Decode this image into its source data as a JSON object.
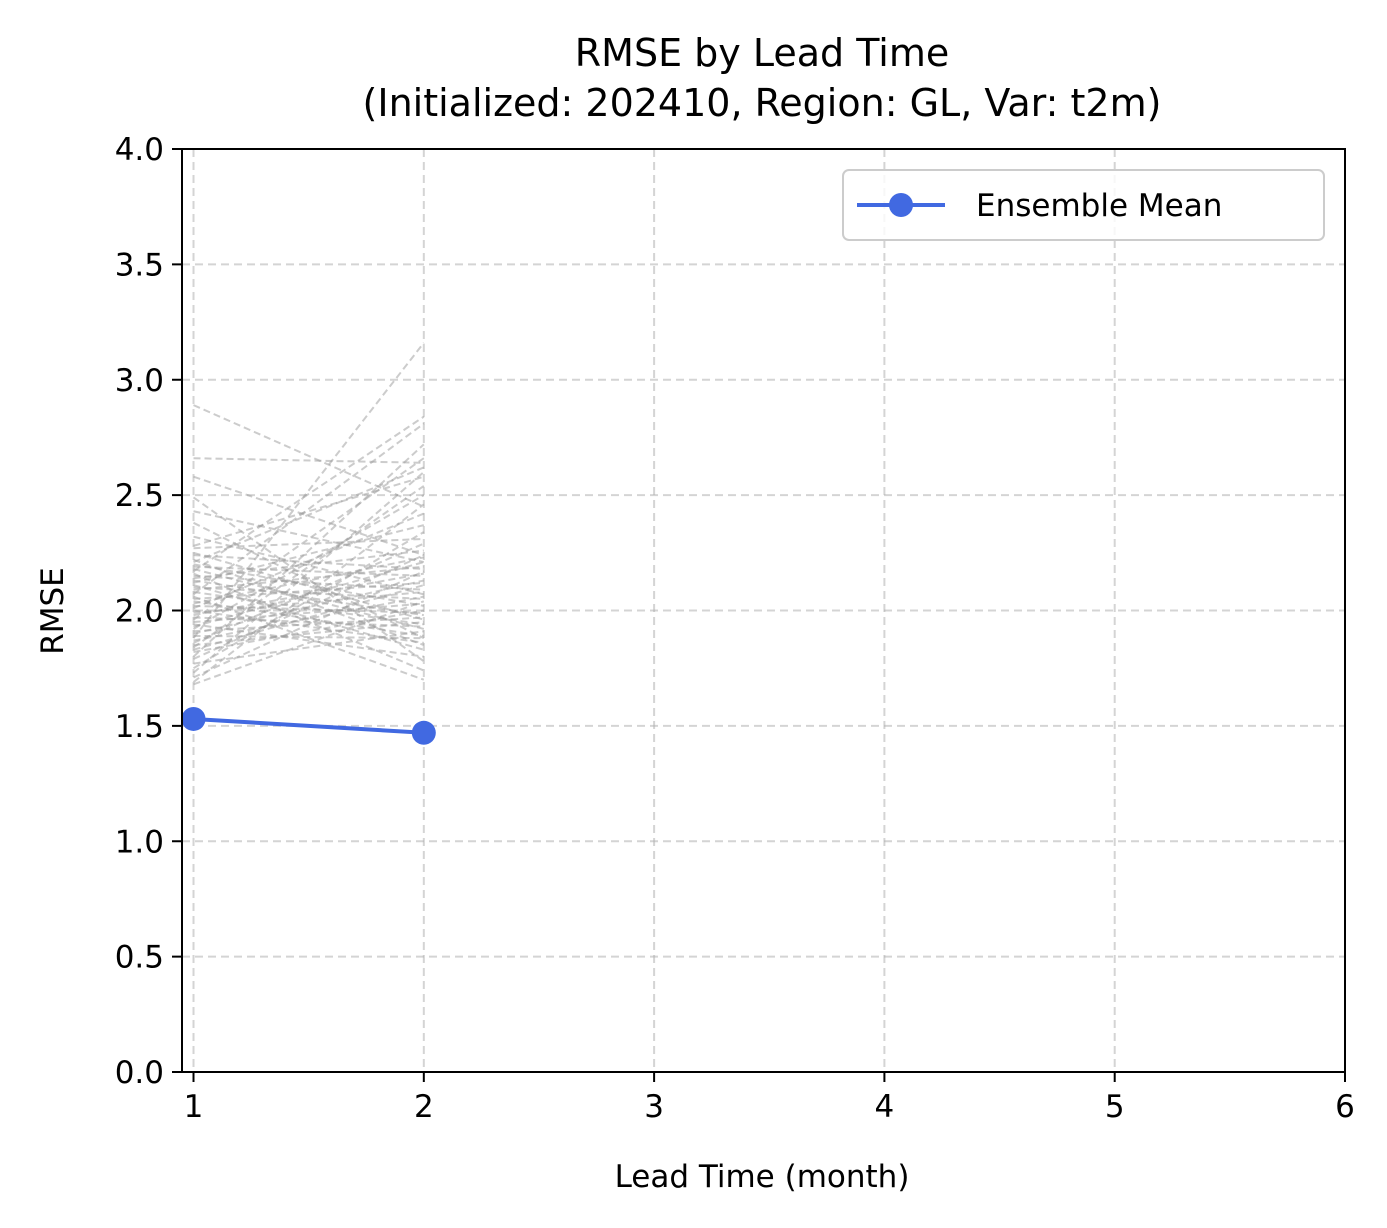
{
  "chart_data": {
    "type": "line",
    "title_line1": "RMSE by Lead Time",
    "title_line2": "(Initialized: 202410, Region: GL, Var: t2m)",
    "xlabel": "Lead Time (month)",
    "ylabel": "RMSE",
    "xlim": [
      0.95,
      6
    ],
    "ylim": [
      0,
      4
    ],
    "xticks": [
      1,
      2,
      3,
      4,
      5,
      6
    ],
    "xtick_labels": [
      "1",
      "2",
      "3",
      "4",
      "5",
      "6"
    ],
    "yticks": [
      0,
      0.5,
      1,
      1.5,
      2,
      2.5,
      3,
      3.5,
      4
    ],
    "ytick_labels": [
      "0.0",
      "0.5",
      "1.0",
      "1.5",
      "2.0",
      "2.5",
      "3.0",
      "3.5",
      "4.0"
    ],
    "grid": true,
    "grid_style": "dashed",
    "legend_position": "top-right",
    "series": [
      {
        "name": "Ensemble Mean",
        "color": "#4169e1",
        "x": [
          1,
          2
        ],
        "values": [
          1.53,
          1.47
        ]
      }
    ],
    "members": {
      "color": "#999999",
      "x": [
        1,
        2
      ],
      "values": [
        [
          2.89,
          2.45
        ],
        [
          2.66,
          2.64
        ],
        [
          2.58,
          2.24
        ],
        [
          2.49,
          1.78
        ],
        [
          2.43,
          2.21
        ],
        [
          2.38,
          1.88
        ],
        [
          2.32,
          2.07
        ],
        [
          2.28,
          2.58
        ],
        [
          2.27,
          2.31
        ],
        [
          2.25,
          1.96
        ],
        [
          2.24,
          2.18
        ],
        [
          2.22,
          1.85
        ],
        [
          2.21,
          2.62
        ],
        [
          2.2,
          2.02
        ],
        [
          2.19,
          2.15
        ],
        [
          2.18,
          1.92
        ],
        [
          2.17,
          2.84
        ],
        [
          2.16,
          1.74
        ],
        [
          2.15,
          2.09
        ],
        [
          2.14,
          2.26
        ],
        [
          2.13,
          1.98
        ],
        [
          2.12,
          2.37
        ],
        [
          2.11,
          1.83
        ],
        [
          2.1,
          2.05
        ],
        [
          2.09,
          2.19
        ],
        [
          2.08,
          1.94
        ],
        [
          2.07,
          2.81
        ],
        [
          2.06,
          1.7
        ],
        [
          2.05,
          2.12
        ],
        [
          2.04,
          1.89
        ],
        [
          2.03,
          2.23
        ],
        [
          2.02,
          1.99
        ],
        [
          2.01,
          2.42
        ],
        [
          2.0,
          1.86
        ],
        [
          1.99,
          2.08
        ],
        [
          1.98,
          2.16
        ],
        [
          1.97,
          1.93
        ],
        [
          1.96,
          2.66
        ],
        [
          1.95,
          2.03
        ],
        [
          1.94,
          1.8
        ],
        [
          1.93,
          2.21
        ],
        [
          1.92,
          2.5
        ],
        [
          1.91,
          1.97
        ],
        [
          1.9,
          2.13
        ],
        [
          1.89,
          1.88
        ],
        [
          1.88,
          3.16
        ],
        [
          1.87,
          2.06
        ],
        [
          1.86,
          2.29
        ],
        [
          1.85,
          1.95
        ],
        [
          1.84,
          2.54
        ],
        [
          1.83,
          2.11
        ],
        [
          1.82,
          2.0
        ],
        [
          1.8,
          2.72
        ],
        [
          1.79,
          2.24
        ],
        [
          1.77,
          1.91
        ],
        [
          1.75,
          2.34
        ],
        [
          1.73,
          2.6
        ],
        [
          1.71,
          2.17
        ],
        [
          1.69,
          2.46
        ],
        [
          1.68,
          2.04
        ]
      ]
    }
  }
}
